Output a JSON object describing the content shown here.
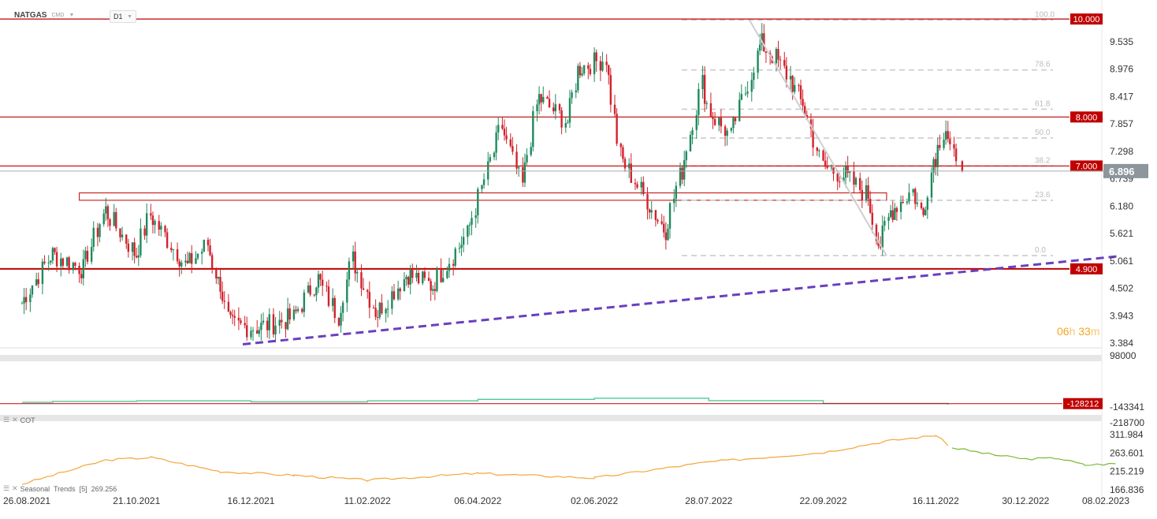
{
  "header": {
    "symbol": "NATGAS",
    "source": "CMD",
    "timeframe": "D1"
  },
  "countdown": {
    "hours": "06",
    "hours_unit": "h",
    "minutes": "33",
    "minutes_unit": "m"
  },
  "indicator_labels": {
    "cot": "COT",
    "seasonal": "Seasonal  Trends  [5]  269.256"
  },
  "colors": {
    "bull": "#1e8a5e",
    "bear": "#d2222c",
    "level_line": "#c00000",
    "trend_dash": "#6a3fbf",
    "cot_line": "#4fc99a",
    "seasonal_line": "#f5a53a",
    "seasonal_forecast": "#7cb83a",
    "current_price_bg": "#8d969c",
    "fib": "#cccccc"
  },
  "chart_data": [
    {
      "type": "candlestick",
      "y_ticks": [
        "9.535",
        "8.976",
        "8.417",
        "7.857",
        "7.298",
        "6.739",
        "6.180",
        "5.621",
        "5.061",
        "4.502",
        "3.943",
        "3.384"
      ],
      "x_ticks": [
        "26.08.2021",
        "21.10.2021",
        "16.12.2021",
        "11.02.2022",
        "06.04.2022",
        "02.06.2022",
        "28.07.2022",
        "22.09.2022",
        "16.11.2022",
        "30.12.2022",
        "08.02.2023"
      ],
      "ylim": [
        3.384,
        10.0
      ],
      "levels": [
        {
          "label": "10.000",
          "value": 10.0
        },
        {
          "label": "8.000",
          "value": 8.0
        },
        {
          "label": "7.000",
          "value": 7.0
        },
        {
          "label": "4.900",
          "value": 4.9
        }
      ],
      "current_price": {
        "label": "6.896",
        "value": 6.896
      },
      "fibonacci": [
        {
          "label": "100.0",
          "value": 9.98
        },
        {
          "label": "78.6",
          "value": 8.96
        },
        {
          "label": "61.8",
          "value": 8.16
        },
        {
          "label": "50.0",
          "value": 7.57
        },
        {
          "label": "38.2",
          "value": 7.0
        },
        {
          "label": "23.6",
          "value": 6.3
        },
        {
          "label": "0.0",
          "value": 5.17
        }
      ],
      "zone": {
        "top": 6.45,
        "bottom": 6.3,
        "x_from": "2021-09-23",
        "x_to": "2022-10-23"
      },
      "trendline": {
        "from": {
          "x": "2021-12-12",
          "y": 3.36
        },
        "to": {
          "x": "2023-02-14",
          "y": 5.16
        }
      },
      "falling_line": {
        "from": {
          "x": "2022-08-17",
          "y": 9.97
        },
        "to": {
          "x": "2022-10-23",
          "y": 5.17
        }
      },
      "anchors": [
        {
          "x": "2021-08-26",
          "y": 4.2
        },
        {
          "x": "2021-09-10",
          "y": 5.2
        },
        {
          "x": "2021-09-25",
          "y": 4.9
        },
        {
          "x": "2021-10-06",
          "y": 6.1
        },
        {
          "x": "2021-10-21",
          "y": 5.2
        },
        {
          "x": "2021-10-28",
          "y": 6.0
        },
        {
          "x": "2021-11-15",
          "y": 4.95
        },
        {
          "x": "2021-11-25",
          "y": 5.4
        },
        {
          "x": "2021-12-01",
          "y": 4.6
        },
        {
          "x": "2021-12-06",
          "y": 3.75
        },
        {
          "x": "2021-12-20",
          "y": 3.7
        },
        {
          "x": "2022-01-06",
          "y": 3.9
        },
        {
          "x": "2022-01-18",
          "y": 4.7
        },
        {
          "x": "2022-01-28",
          "y": 3.95
        },
        {
          "x": "2022-02-04",
          "y": 5.1
        },
        {
          "x": "2022-02-16",
          "y": 4.0
        },
        {
          "x": "2022-03-03",
          "y": 4.8
        },
        {
          "x": "2022-03-15",
          "y": 4.55
        },
        {
          "x": "2022-04-01",
          "y": 5.6
        },
        {
          "x": "2022-04-18",
          "y": 7.8
        },
        {
          "x": "2022-04-28",
          "y": 6.6
        },
        {
          "x": "2022-05-06",
          "y": 8.4
        },
        {
          "x": "2022-05-20",
          "y": 7.9
        },
        {
          "x": "2022-05-26",
          "y": 9.0
        },
        {
          "x": "2022-06-08",
          "y": 9.2
        },
        {
          "x": "2022-06-15",
          "y": 7.2
        },
        {
          "x": "2022-06-28",
          "y": 6.3
        },
        {
          "x": "2022-07-07",
          "y": 5.7
        },
        {
          "x": "2022-07-15",
          "y": 6.9
        },
        {
          "x": "2022-07-25",
          "y": 8.7
        },
        {
          "x": "2022-07-29",
          "y": 8.1
        },
        {
          "x": "2022-08-08",
          "y": 7.6
        },
        {
          "x": "2022-08-23",
          "y": 9.5
        },
        {
          "x": "2022-08-30",
          "y": 9.2
        },
        {
          "x": "2022-09-06",
          "y": 8.8
        },
        {
          "x": "2022-09-12",
          "y": 8.3
        },
        {
          "x": "2022-09-22",
          "y": 7.0
        },
        {
          "x": "2022-10-03",
          "y": 6.8
        },
        {
          "x": "2022-10-14",
          "y": 6.4
        },
        {
          "x": "2022-10-20",
          "y": 5.4
        },
        {
          "x": "2022-10-26",
          "y": 6.1
        },
        {
          "x": "2022-11-05",
          "y": 6.5
        },
        {
          "x": "2022-11-10",
          "y": 6.0
        },
        {
          "x": "2022-11-16",
          "y": 7.2
        },
        {
          "x": "2022-11-21",
          "y": 7.8
        },
        {
          "x": "2022-11-27",
          "y": 6.9
        }
      ],
      "last_candle": {
        "x": "2022-11-29",
        "y": 6.896
      }
    },
    {
      "type": "line",
      "name": "COT",
      "y_ticks": [
        "98000",
        "-143341",
        "-218700"
      ],
      "last_value": {
        "label": "-128212",
        "value": -128212
      },
      "points": [
        {
          "x": "2021-08-26",
          "y": -122000
        },
        {
          "x": "2021-09-10",
          "y": -118000
        },
        {
          "x": "2021-10-21",
          "y": -115000
        },
        {
          "x": "2021-12-16",
          "y": -120000
        },
        {
          "x": "2022-02-11",
          "y": -115000
        },
        {
          "x": "2022-04-06",
          "y": -108000
        },
        {
          "x": "2022-06-02",
          "y": -103000
        },
        {
          "x": "2022-07-28",
          "y": -114000
        },
        {
          "x": "2022-09-22",
          "y": -127000
        },
        {
          "x": "2022-11-10",
          "y": -127000
        },
        {
          "x": "2022-11-22",
          "y": -133000
        }
      ]
    },
    {
      "type": "line",
      "name": "Seasonal Trends [5]",
      "y_ticks": [
        "311.984",
        "263.601",
        "215.219",
        "166.836"
      ],
      "points": [
        {
          "x": "2021-08-26",
          "y": 182
        },
        {
          "x": "2021-10-06",
          "y": 245
        },
        {
          "x": "2021-10-28",
          "y": 252
        },
        {
          "x": "2021-12-01",
          "y": 215
        },
        {
          "x": "2022-01-06",
          "y": 205
        },
        {
          "x": "2022-02-11",
          "y": 192
        },
        {
          "x": "2022-04-06",
          "y": 210
        },
        {
          "x": "2022-06-02",
          "y": 198
        },
        {
          "x": "2022-07-28",
          "y": 240
        },
        {
          "x": "2022-09-22",
          "y": 265
        },
        {
          "x": "2022-10-23",
          "y": 295
        },
        {
          "x": "2022-11-16",
          "y": 310
        },
        {
          "x": "2022-11-24",
          "y": 278
        }
      ],
      "forecast": [
        {
          "x": "2022-11-24",
          "y": 278
        },
        {
          "x": "2022-12-15",
          "y": 258
        },
        {
          "x": "2022-12-30",
          "y": 248
        },
        {
          "x": "2023-01-15",
          "y": 250
        },
        {
          "x": "2023-01-28",
          "y": 232
        },
        {
          "x": "2023-02-14",
          "y": 236
        }
      ]
    }
  ]
}
